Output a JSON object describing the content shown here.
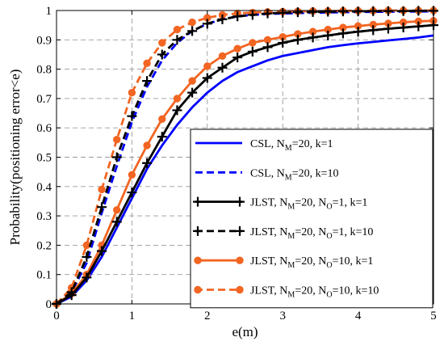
{
  "chart_data": {
    "type": "line",
    "title": "",
    "xlabel": "e(m)",
    "ylabel": "Probability(positioning error<e)",
    "xlim": [
      0,
      5
    ],
    "ylim": [
      0,
      1
    ],
    "xticks": [
      "0",
      "1",
      "2",
      "3",
      "4",
      "5"
    ],
    "yticks": [
      "0",
      "0.1",
      "0.2",
      "0.3",
      "0.4",
      "0.5",
      "0.6",
      "0.7",
      "0.8",
      "0.9",
      "1"
    ],
    "grid": true,
    "legend_position": "bottom-right",
    "series": [
      {
        "legend": {
          "prefix": "CSL, N",
          "parts": [
            [
              "M",
              "=20, k=1"
            ]
          ]
        },
        "color": "#0000ff",
        "dash": "solid",
        "marker": "none",
        "x": [
          0,
          0.2,
          0.4,
          0.6,
          0.8,
          1.0,
          1.2,
          1.4,
          1.6,
          1.8,
          2.0,
          2.2,
          2.4,
          2.6,
          2.8,
          3.0,
          3.2,
          3.4,
          3.6,
          3.8,
          4.0,
          4.2,
          4.4,
          4.6,
          4.8,
          5.0
        ],
        "y": [
          0,
          0.025,
          0.08,
          0.16,
          0.26,
          0.36,
          0.46,
          0.54,
          0.61,
          0.67,
          0.72,
          0.76,
          0.79,
          0.81,
          0.83,
          0.845,
          0.855,
          0.865,
          0.875,
          0.882,
          0.888,
          0.893,
          0.898,
          0.903,
          0.908,
          0.915
        ]
      },
      {
        "legend": {
          "prefix": "CSL, N",
          "parts": [
            [
              "M",
              "=20, k=10"
            ]
          ]
        },
        "color": "#0000ff",
        "dash": "dashed",
        "marker": "none",
        "x": [
          0,
          0.2,
          0.4,
          0.6,
          0.8,
          1.0,
          1.2,
          1.4,
          1.6,
          1.8,
          2.0,
          2.2,
          2.4,
          2.6,
          2.8,
          3.0,
          3.5,
          4.0,
          4.5,
          5.0
        ],
        "y": [
          0,
          0.04,
          0.14,
          0.31,
          0.47,
          0.62,
          0.74,
          0.83,
          0.89,
          0.93,
          0.955,
          0.97,
          0.98,
          0.985,
          0.988,
          0.99,
          0.993,
          0.995,
          0.996,
          0.997
        ]
      },
      {
        "legend": {
          "prefix": "JLST, N",
          "parts": [
            [
              "M",
              "=20, N"
            ],
            [
              "O",
              "=1, k=1"
            ]
          ]
        },
        "color": "#000000",
        "dash": "solid",
        "marker": "plus",
        "x": [
          0,
          0.2,
          0.4,
          0.6,
          0.8,
          1.0,
          1.2,
          1.4,
          1.6,
          1.8,
          2.0,
          2.2,
          2.4,
          2.6,
          2.8,
          3.0,
          3.2,
          3.4,
          3.6,
          3.8,
          4.0,
          4.2,
          4.4,
          4.6,
          4.8,
          5.0
        ],
        "y": [
          0,
          0.03,
          0.09,
          0.18,
          0.28,
          0.38,
          0.48,
          0.57,
          0.66,
          0.72,
          0.77,
          0.805,
          0.84,
          0.86,
          0.875,
          0.89,
          0.9,
          0.908,
          0.915,
          0.922,
          0.928,
          0.933,
          0.938,
          0.942,
          0.946,
          0.95
        ]
      },
      {
        "legend": {
          "prefix": "JLST, N",
          "parts": [
            [
              "M",
              "=20, N"
            ],
            [
              "O",
              "=1, k=10"
            ]
          ]
        },
        "color": "#000000",
        "dash": "dashed",
        "marker": "plus",
        "x": [
          0,
          0.2,
          0.4,
          0.6,
          0.8,
          1.0,
          1.2,
          1.4,
          1.6,
          1.8,
          2.0,
          2.2,
          2.4,
          2.6,
          2.8,
          3.0,
          3.2,
          3.4,
          3.6,
          3.8,
          4.0,
          4.2,
          4.4,
          4.6,
          4.8,
          5.0
        ],
        "y": [
          0,
          0.04,
          0.16,
          0.33,
          0.5,
          0.64,
          0.76,
          0.85,
          0.9,
          0.93,
          0.955,
          0.97,
          0.98,
          0.985,
          0.99,
          0.992,
          0.994,
          0.995,
          0.996,
          0.997,
          0.997,
          0.998,
          0.998,
          0.998,
          0.999,
          0.999
        ]
      },
      {
        "legend": {
          "prefix": "JLST, N",
          "parts": [
            [
              "M",
              "=20, N"
            ],
            [
              "O",
              "=10, k=1"
            ]
          ]
        },
        "color": "#f26522",
        "dash": "solid",
        "marker": "circle",
        "x": [
          0,
          0.2,
          0.4,
          0.6,
          0.8,
          1.0,
          1.2,
          1.4,
          1.6,
          1.8,
          2.0,
          2.2,
          2.4,
          2.6,
          2.8,
          3.0,
          3.2,
          3.4,
          3.6,
          3.8,
          4.0,
          4.2,
          4.4,
          4.6,
          4.8,
          5.0
        ],
        "y": [
          0,
          0.035,
          0.1,
          0.2,
          0.32,
          0.44,
          0.54,
          0.63,
          0.7,
          0.76,
          0.81,
          0.845,
          0.87,
          0.89,
          0.9,
          0.91,
          0.92,
          0.928,
          0.935,
          0.942,
          0.947,
          0.952,
          0.956,
          0.96,
          0.963,
          0.965
        ]
      },
      {
        "legend": {
          "prefix": "JLST, N",
          "parts": [
            [
              "M",
              "=20, N"
            ],
            [
              "O",
              "=10, k=10"
            ]
          ]
        },
        "color": "#f26522",
        "dash": "dashed",
        "marker": "circle",
        "x": [
          0,
          0.2,
          0.4,
          0.6,
          0.8,
          1.0,
          1.2,
          1.4,
          1.6,
          1.8,
          2.0,
          2.2,
          2.4,
          2.6,
          2.8,
          3.0,
          3.2,
          3.4,
          3.6,
          3.8,
          4.0,
          4.2,
          4.4,
          4.6,
          4.8,
          5.0
        ],
        "y": [
          0,
          0.055,
          0.2,
          0.39,
          0.56,
          0.72,
          0.82,
          0.89,
          0.935,
          0.96,
          0.975,
          0.985,
          0.99,
          0.993,
          0.995,
          0.996,
          0.997,
          0.998,
          0.998,
          0.999,
          0.999,
          0.999,
          1.0,
          1.0,
          1.0,
          1.0
        ]
      }
    ]
  }
}
